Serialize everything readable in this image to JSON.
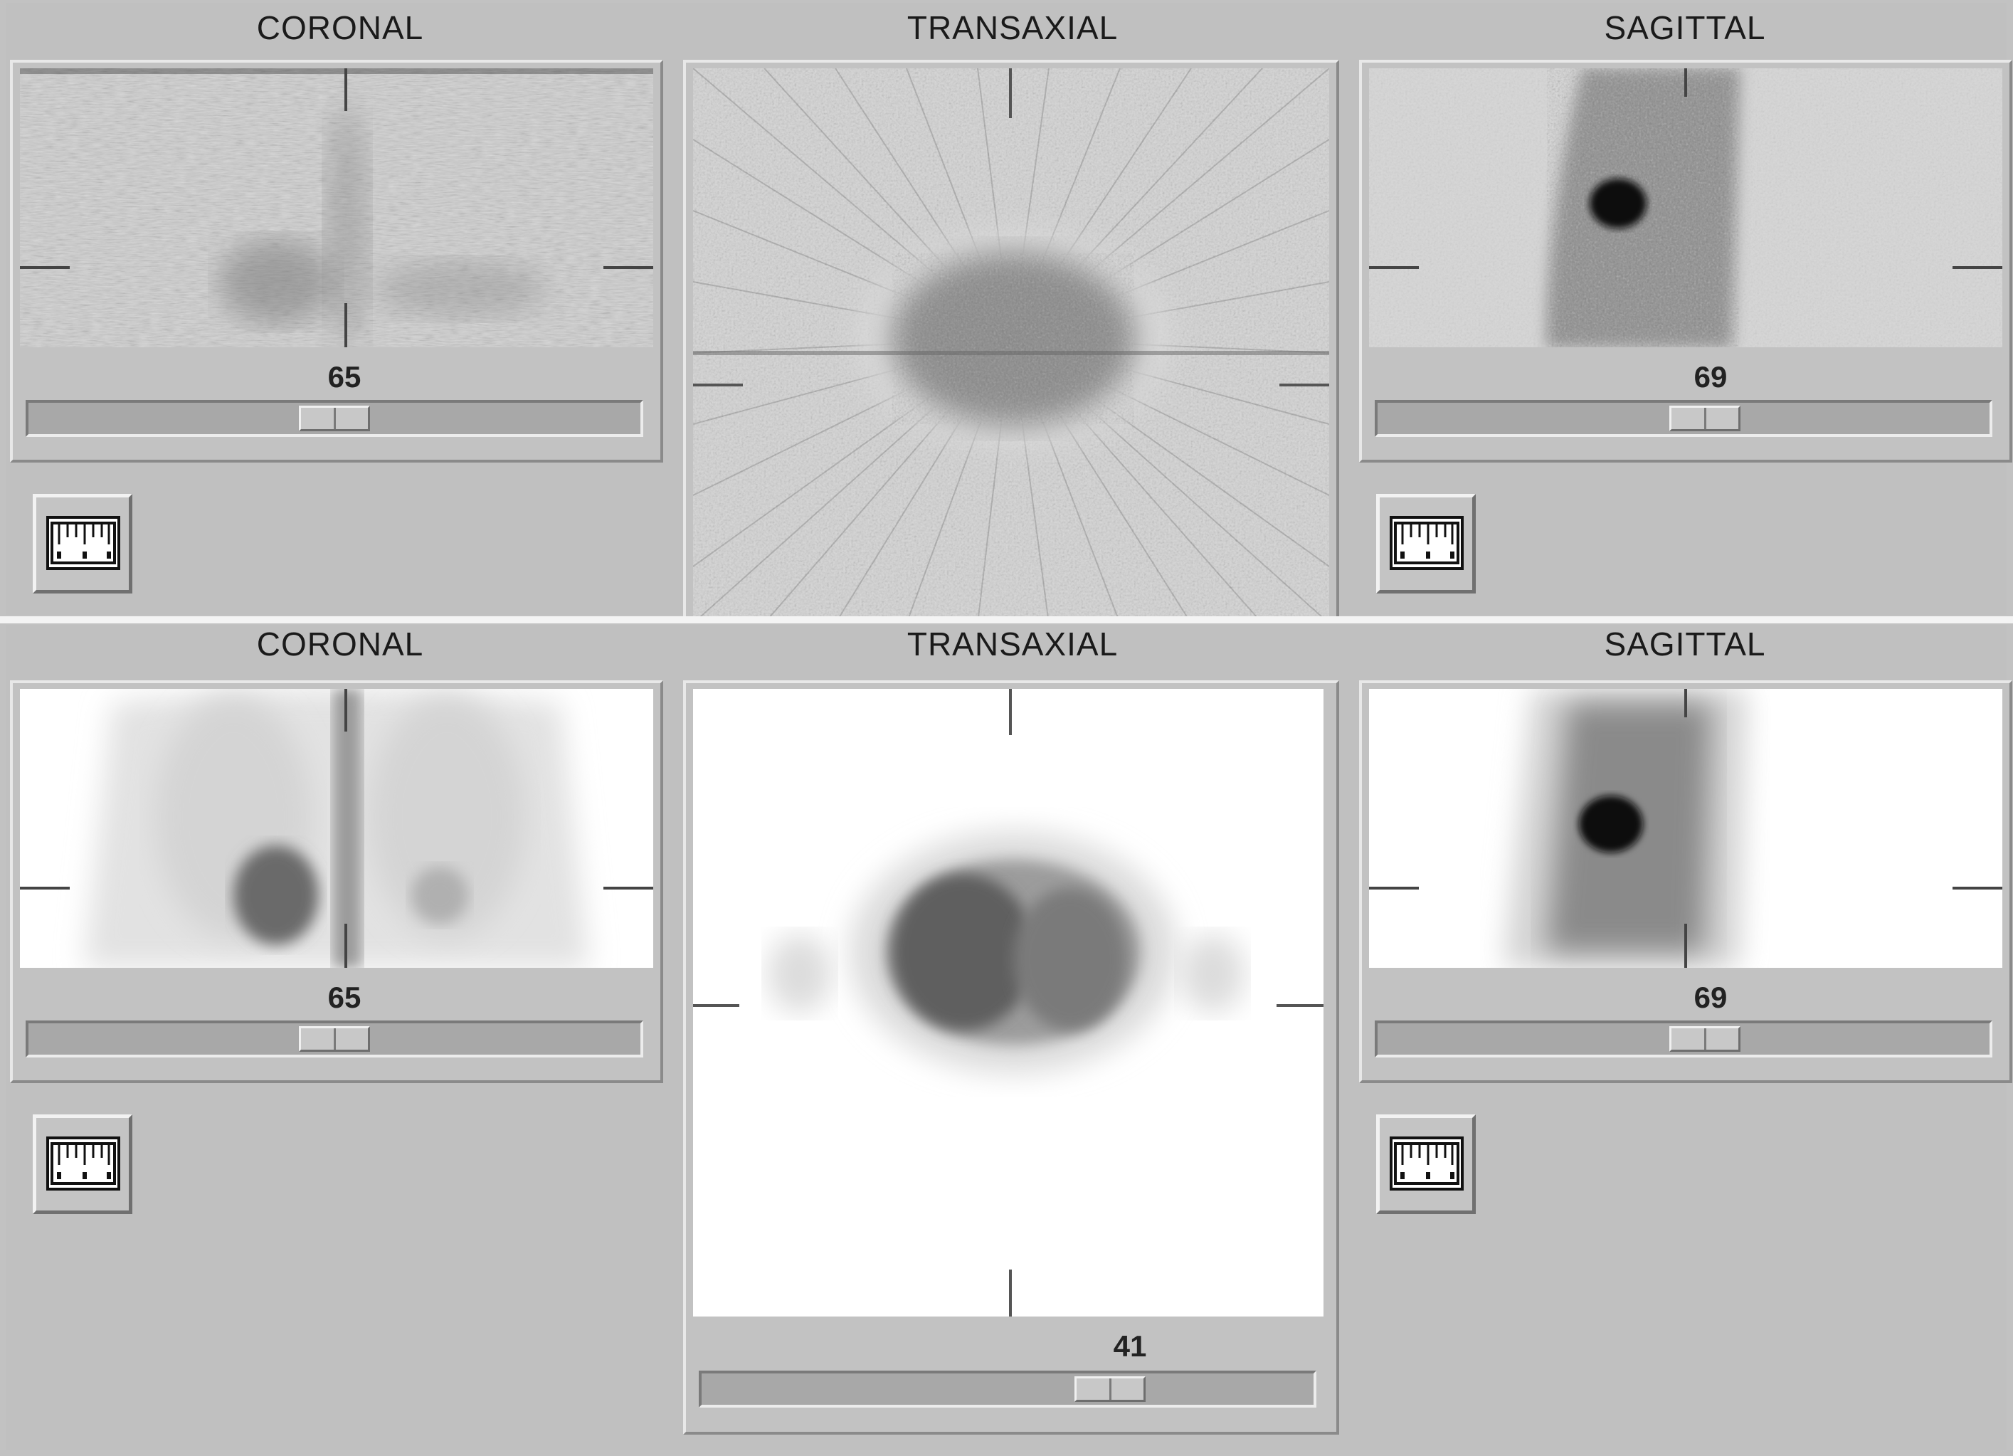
{
  "top_row": {
    "coronal": {
      "title": "CORONAL",
      "slice": "65",
      "slider_position": 0.5
    },
    "transaxial": {
      "title": "TRANSAXIAL"
    },
    "sagittal": {
      "title": "SAGITTAL",
      "slice": "69",
      "slider_position": 0.54
    }
  },
  "bottom_row": {
    "coronal": {
      "title": "CORONAL",
      "slice": "65",
      "slider_position": 0.5
    },
    "transaxial": {
      "title": "TRANSAXIAL",
      "slice": "41",
      "slider_position": 0.69
    },
    "sagittal": {
      "title": "SAGITTAL",
      "slice": "69",
      "slider_position": 0.54
    }
  },
  "icons": {
    "measure": "ruler-icon"
  },
  "colors": {
    "background": "#c0c0c0",
    "filtered_image_bg": "#d6d6d6",
    "corrected_image_bg": "#ffffff",
    "uptake": "#1a1a1a"
  }
}
